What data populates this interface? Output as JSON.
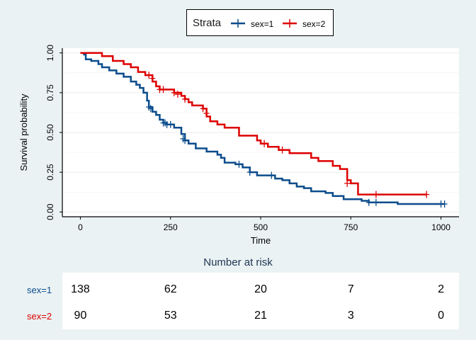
{
  "chart_data": {
    "type": "line",
    "subtype": "kaplan-meier",
    "xlabel": "Time",
    "ylabel": "Survival probability",
    "xlim": [
      -50,
      1050
    ],
    "ylim": [
      -0.03,
      1.03
    ],
    "xticks": [
      0,
      250,
      500,
      750,
      1000
    ],
    "yticks": [
      0.0,
      0.25,
      0.5,
      0.75,
      1.0
    ],
    "ytick_labels": [
      "0.00",
      "0.25",
      "0.50",
      "0.75",
      "1.00"
    ],
    "grid": true,
    "legend": {
      "title": "Strata",
      "placement": "top-center",
      "entries": [
        "sex=1",
        "sex=2"
      ]
    },
    "series": [
      {
        "name": "sex=1",
        "color": "#0B4C8C",
        "steps": [
          [
            0,
            1.0
          ],
          [
            10,
            0.99
          ],
          [
            15,
            0.96
          ],
          [
            30,
            0.95
          ],
          [
            50,
            0.93
          ],
          [
            60,
            0.91
          ],
          [
            80,
            0.89
          ],
          [
            100,
            0.87
          ],
          [
            120,
            0.85
          ],
          [
            140,
            0.82
          ],
          [
            155,
            0.8
          ],
          [
            165,
            0.78
          ],
          [
            175,
            0.75
          ],
          [
            185,
            0.7
          ],
          [
            190,
            0.66
          ],
          [
            200,
            0.63
          ],
          [
            210,
            0.61
          ],
          [
            220,
            0.58
          ],
          [
            230,
            0.56
          ],
          [
            240,
            0.55
          ],
          [
            260,
            0.53
          ],
          [
            280,
            0.49
          ],
          [
            290,
            0.45
          ],
          [
            300,
            0.43
          ],
          [
            320,
            0.4
          ],
          [
            350,
            0.38
          ],
          [
            380,
            0.36
          ],
          [
            390,
            0.34
          ],
          [
            400,
            0.31
          ],
          [
            430,
            0.3
          ],
          [
            450,
            0.28
          ],
          [
            470,
            0.25
          ],
          [
            490,
            0.23
          ],
          [
            540,
            0.21
          ],
          [
            560,
            0.2
          ],
          [
            580,
            0.18
          ],
          [
            600,
            0.16
          ],
          [
            620,
            0.15
          ],
          [
            640,
            0.13
          ],
          [
            680,
            0.12
          ],
          [
            700,
            0.1
          ],
          [
            730,
            0.08
          ],
          [
            780,
            0.07
          ],
          [
            800,
            0.06
          ],
          [
            880,
            0.05
          ],
          [
            1010,
            0.05
          ]
        ],
        "censored": [
          [
            190,
            0.66
          ],
          [
            195,
            0.65
          ],
          [
            230,
            0.56
          ],
          [
            235,
            0.56
          ],
          [
            240,
            0.55
          ],
          [
            250,
            0.55
          ],
          [
            285,
            0.46
          ],
          [
            290,
            0.45
          ],
          [
            440,
            0.3
          ],
          [
            470,
            0.25
          ],
          [
            530,
            0.23
          ],
          [
            800,
            0.06
          ],
          [
            820,
            0.06
          ],
          [
            1000,
            0.05
          ],
          [
            1010,
            0.05
          ]
        ]
      },
      {
        "name": "sex=2",
        "color": "#DD0000",
        "steps": [
          [
            0,
            1.0
          ],
          [
            10,
            1.0
          ],
          [
            60,
            0.98
          ],
          [
            90,
            0.95
          ],
          [
            120,
            0.93
          ],
          [
            140,
            0.91
          ],
          [
            160,
            0.88
          ],
          [
            180,
            0.86
          ],
          [
            200,
            0.82
          ],
          [
            210,
            0.79
          ],
          [
            220,
            0.77
          ],
          [
            260,
            0.75
          ],
          [
            280,
            0.73
          ],
          [
            290,
            0.71
          ],
          [
            300,
            0.69
          ],
          [
            310,
            0.67
          ],
          [
            340,
            0.65
          ],
          [
            350,
            0.6
          ],
          [
            360,
            0.57
          ],
          [
            380,
            0.55
          ],
          [
            400,
            0.53
          ],
          [
            440,
            0.48
          ],
          [
            490,
            0.45
          ],
          [
            500,
            0.43
          ],
          [
            520,
            0.41
          ],
          [
            550,
            0.39
          ],
          [
            580,
            0.37
          ],
          [
            640,
            0.34
          ],
          [
            660,
            0.32
          ],
          [
            700,
            0.29
          ],
          [
            720,
            0.27
          ],
          [
            740,
            0.2
          ],
          [
            750,
            0.18
          ],
          [
            770,
            0.11
          ],
          [
            960,
            0.11
          ]
        ],
        "censored": [
          [
            190,
            0.86
          ],
          [
            200,
            0.84
          ],
          [
            220,
            0.77
          ],
          [
            230,
            0.77
          ],
          [
            260,
            0.75
          ],
          [
            270,
            0.74
          ],
          [
            290,
            0.71
          ],
          [
            340,
            0.65
          ],
          [
            350,
            0.62
          ],
          [
            510,
            0.43
          ],
          [
            560,
            0.39
          ],
          [
            740,
            0.18
          ],
          [
            820,
            0.11
          ],
          [
            960,
            0.11
          ]
        ]
      }
    ],
    "risk_table": {
      "title": "Number at risk",
      "times": [
        0,
        250,
        500,
        750,
        1000
      ],
      "rows": [
        {
          "name": "sex=1",
          "color": "#0B4C8C",
          "values": [
            138,
            62,
            20,
            7,
            2
          ]
        },
        {
          "name": "sex=2",
          "color": "#DD0000",
          "values": [
            90,
            53,
            21,
            3,
            0
          ]
        }
      ]
    }
  }
}
